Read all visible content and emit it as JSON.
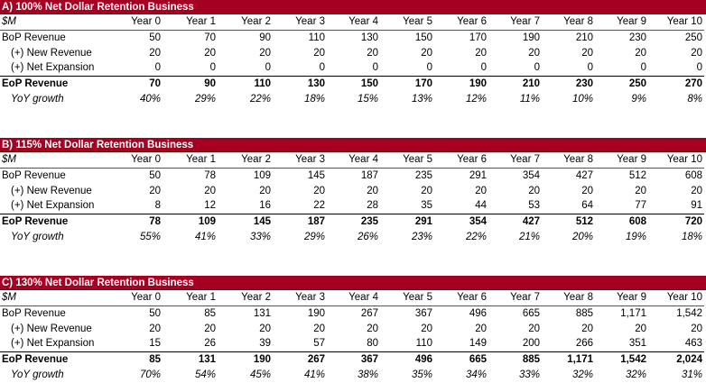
{
  "sections": [
    {
      "title": "A) 100% Net Dollar Retention Business",
      "unit": "$M",
      "columns": [
        "Year 0",
        "Year 1",
        "Year 2",
        "Year 3",
        "Year 4",
        "Year 5",
        "Year 6",
        "Year 7",
        "Year 8",
        "Year 9",
        "Year 10"
      ],
      "rows": [
        {
          "label": "BoP Revenue",
          "values": [
            "50",
            "70",
            "90",
            "110",
            "130",
            "150",
            "170",
            "190",
            "210",
            "230",
            "250"
          ]
        },
        {
          "label": "(+) New Revenue",
          "values": [
            "20",
            "20",
            "20",
            "20",
            "20",
            "20",
            "20",
            "20",
            "20",
            "20",
            "20"
          ]
        },
        {
          "label": "(+) Net Expansion",
          "values": [
            "0",
            "0",
            "0",
            "0",
            "0",
            "0",
            "0",
            "0",
            "0",
            "0",
            "0"
          ]
        },
        {
          "label": "EoP Revenue",
          "values": [
            "70",
            "90",
            "110",
            "130",
            "150",
            "170",
            "190",
            "210",
            "230",
            "250",
            "270"
          ]
        },
        {
          "label": "YoY growth",
          "values": [
            "40%",
            "29%",
            "22%",
            "18%",
            "15%",
            "13%",
            "12%",
            "11%",
            "10%",
            "9%",
            "8%"
          ]
        }
      ]
    },
    {
      "title": "B) 115% Net Dollar Retention Business",
      "unit": "$M",
      "columns": [
        "Year 0",
        "Year 1",
        "Year 2",
        "Year 3",
        "Year 4",
        "Year 5",
        "Year 6",
        "Year 7",
        "Year 8",
        "Year 9",
        "Year 10"
      ],
      "rows": [
        {
          "label": "BoP Revenue",
          "values": [
            "50",
            "78",
            "109",
            "145",
            "187",
            "235",
            "291",
            "354",
            "427",
            "512",
            "608"
          ]
        },
        {
          "label": "(+) New Revenue",
          "values": [
            "20",
            "20",
            "20",
            "20",
            "20",
            "20",
            "20",
            "20",
            "20",
            "20",
            "20"
          ]
        },
        {
          "label": "(+) Net Expansion",
          "values": [
            "8",
            "12",
            "16",
            "22",
            "28",
            "35",
            "44",
            "53",
            "64",
            "77",
            "91"
          ]
        },
        {
          "label": "EoP Revenue",
          "values": [
            "78",
            "109",
            "145",
            "187",
            "235",
            "291",
            "354",
            "427",
            "512",
            "608",
            "720"
          ]
        },
        {
          "label": "YoY growth",
          "values": [
            "55%",
            "41%",
            "33%",
            "29%",
            "26%",
            "23%",
            "22%",
            "21%",
            "20%",
            "19%",
            "18%"
          ]
        }
      ]
    },
    {
      "title": "C) 130% Net Dollar Retention Business",
      "unit": "$M",
      "columns": [
        "Year 0",
        "Year 1",
        "Year 2",
        "Year 3",
        "Year 4",
        "Year 5",
        "Year 6",
        "Year 7",
        "Year 8",
        "Year 9",
        "Year 10"
      ],
      "rows": [
        {
          "label": "BoP Revenue",
          "values": [
            "50",
            "85",
            "131",
            "190",
            "267",
            "367",
            "496",
            "665",
            "885",
            "1,171",
            "1,542"
          ]
        },
        {
          "label": "(+) New Revenue",
          "values": [
            "20",
            "20",
            "20",
            "20",
            "20",
            "20",
            "20",
            "20",
            "20",
            "20",
            "20"
          ]
        },
        {
          "label": "(+) Net Expansion",
          "values": [
            "15",
            "26",
            "39",
            "57",
            "80",
            "110",
            "149",
            "200",
            "266",
            "351",
            "463"
          ]
        },
        {
          "label": "EoP Revenue",
          "values": [
            "85",
            "131",
            "190",
            "267",
            "367",
            "496",
            "665",
            "885",
            "1,171",
            "1,542",
            "2,024"
          ]
        },
        {
          "label": "YoY growth",
          "values": [
            "70%",
            "54%",
            "45%",
            "41%",
            "38%",
            "35%",
            "34%",
            "33%",
            "32%",
            "32%",
            "31%"
          ]
        }
      ]
    }
  ]
}
